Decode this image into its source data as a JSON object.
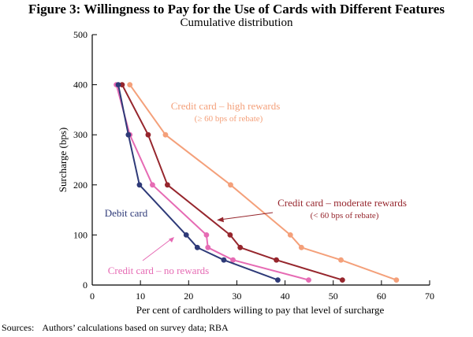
{
  "chart_data": {
    "type": "line",
    "title": "Figure 3: Willingness to Pay for the Use of Cards with Different Features",
    "subtitle": "Cumulative distribution",
    "xlabel": "Per cent of cardholders willing to pay that level of surcharge",
    "ylabel": "Surcharge (bps)",
    "xlim": [
      0,
      70
    ],
    "ylim": [
      0,
      500
    ],
    "xticks": [
      "0",
      "10",
      "20",
      "30",
      "40",
      "50",
      "60",
      "70"
    ],
    "yticks": [
      "0",
      "100",
      "200",
      "300",
      "400",
      "500"
    ],
    "grid": false,
    "series": [
      {
        "name": "Credit card – high rewards",
        "note": "(≥ 60 bps of rebate)",
        "color": "#f4a07a",
        "points": [
          [
            7.8,
            400
          ],
          [
            15.2,
            300
          ],
          [
            28.7,
            200
          ],
          [
            41.1,
            100
          ],
          [
            43.4,
            75
          ],
          [
            51.6,
            50
          ],
          [
            63.1,
            10
          ]
        ]
      },
      {
        "name": "Credit card – moderate rewards",
        "note": "(< 60 bps of rebate)",
        "color": "#96262d",
        "points": [
          [
            6.2,
            400
          ],
          [
            11.6,
            300
          ],
          [
            15.6,
            200
          ],
          [
            28.6,
            100
          ],
          [
            30.7,
            75
          ],
          [
            38.2,
            50
          ],
          [
            51.9,
            10
          ]
        ]
      },
      {
        "name": "Credit card – no rewards",
        "color": "#e66bb4",
        "points": [
          [
            5.0,
            400
          ],
          [
            7.8,
            300
          ],
          [
            12.5,
            200
          ],
          [
            23.7,
            100
          ],
          [
            24.0,
            75
          ],
          [
            29.2,
            50
          ],
          [
            44.9,
            10
          ]
        ]
      },
      {
        "name": "Debit card",
        "color": "#2e3a78",
        "points": [
          [
            5.4,
            400
          ],
          [
            7.5,
            300
          ],
          [
            9.8,
            200
          ],
          [
            19.5,
            100
          ],
          [
            21.8,
            75
          ],
          [
            27.3,
            50
          ],
          [
            38.5,
            10
          ]
        ]
      }
    ]
  },
  "sources_label": "Sources:",
  "sources_text": "Authors’ calculations based on survey data; RBA"
}
